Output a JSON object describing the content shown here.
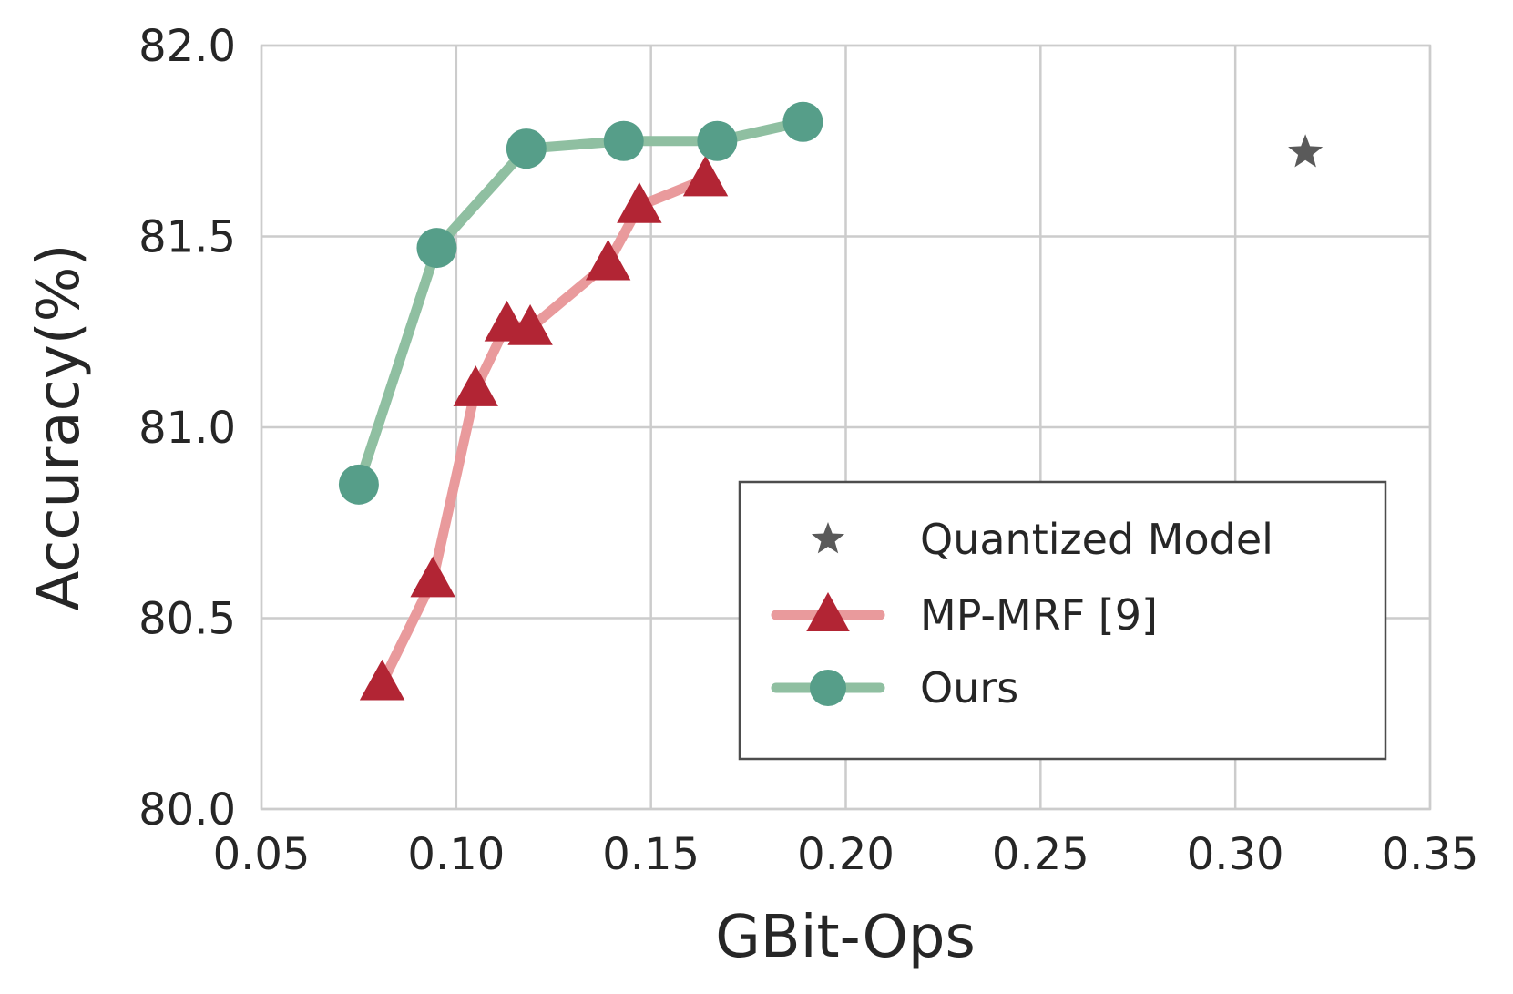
{
  "chart_data": {
    "type": "line",
    "title": "",
    "xlabel": "GBit-Ops",
    "ylabel": "Accuracy(%)",
    "xlim": [
      0.05,
      0.35
    ],
    "ylim": [
      80.0,
      82.0
    ],
    "xticks": [
      "0.05",
      "0.10",
      "0.15",
      "0.20",
      "0.25",
      "0.30",
      "0.35"
    ],
    "yticks": [
      "80.0",
      "80.5",
      "81.0",
      "81.5",
      "82.0"
    ],
    "grid": true,
    "legend_position": "lower-right",
    "series": [
      {
        "name": "Quantized Model",
        "marker": "star",
        "line": false,
        "color": "#5a5a5a",
        "x": [
          0.318
        ],
        "y": [
          81.72
        ]
      },
      {
        "name": "MP-MRF [9]",
        "marker": "triangle",
        "line": true,
        "line_color": "#e99a9c",
        "color": "#b22534",
        "x": [
          0.081,
          0.094,
          0.105,
          0.113,
          0.119,
          0.139,
          0.147,
          0.164
        ],
        "y": [
          80.33,
          80.6,
          81.1,
          81.27,
          81.26,
          81.43,
          81.58,
          81.65
        ]
      },
      {
        "name": "Ours",
        "marker": "circle",
        "line": true,
        "line_color": "#8fbfa1",
        "color": "#569e89",
        "x": [
          0.075,
          0.095,
          0.118,
          0.143,
          0.167,
          0.189
        ],
        "y": [
          80.85,
          81.47,
          81.73,
          81.75,
          81.75,
          81.8
        ]
      }
    ]
  }
}
